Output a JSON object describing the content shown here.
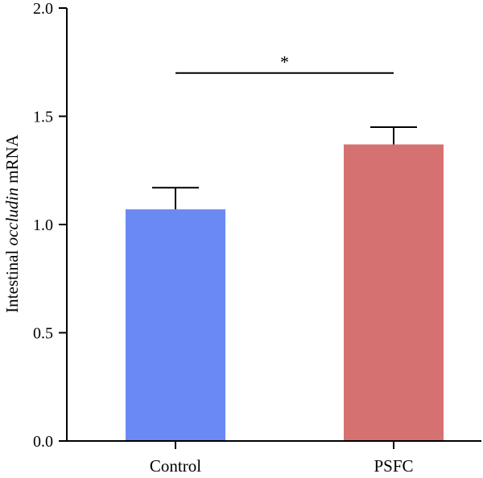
{
  "chart_data": {
    "type": "bar",
    "categories": [
      "Control",
      "PSFC"
    ],
    "values": [
      1.07,
      1.37
    ],
    "error_upper": [
      1.17,
      1.45
    ],
    "bar_colors": [
      "#6a89f2",
      "#d67171"
    ],
    "ylabel": {
      "prefix": "Intestinal ",
      "gene": "occludin",
      "suffix": " mRNA"
    },
    "ylim": [
      0,
      2.0
    ],
    "yticks": [
      "0.0",
      "0.5",
      "1.0",
      "1.5",
      "2.0"
    ],
    "ytick_values": [
      0,
      0.5,
      1.0,
      1.5,
      2.0
    ],
    "significance": {
      "label": "*",
      "from": "Control",
      "to": "PSFC",
      "y": 1.7
    },
    "grid": false,
    "legend": "none"
  }
}
